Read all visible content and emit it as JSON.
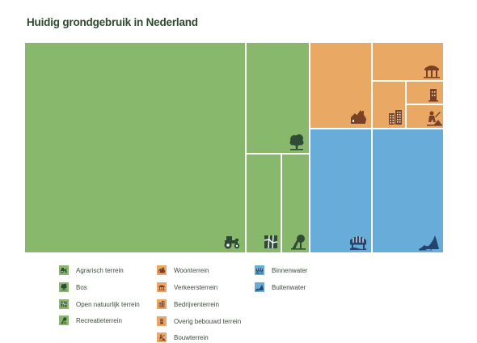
{
  "page": {
    "title": "Huidig grondgebruik in Nederland"
  },
  "colors": {
    "green": "#88b86b",
    "orange": "#eaa865",
    "blue": "#68add9",
    "icon_dark": "#2f4b35",
    "icon_orange": "#7a4127",
    "icon_blue": "#24446c"
  },
  "chart_data": {
    "type": "treemap",
    "title": "Huidig grondgebruik in Nederland",
    "categories": [
      {
        "id": "agrarisch",
        "label": "Agrarisch terrein",
        "group": "green",
        "icon": "tractor-icon"
      },
      {
        "id": "bos",
        "label": "Bos",
        "group": "green",
        "icon": "tree-icon"
      },
      {
        "id": "natuur",
        "label": "Open natuurlijk terrein",
        "group": "green",
        "icon": "map-icon"
      },
      {
        "id": "recreatie",
        "label": "Recreatieterrein",
        "group": "green",
        "icon": "playground-icon"
      },
      {
        "id": "woon",
        "label": "Woonterrein",
        "group": "orange",
        "icon": "houses-icon"
      },
      {
        "id": "verkeer",
        "label": "Verkeersterrein",
        "group": "orange",
        "icon": "road-icon"
      },
      {
        "id": "bedrijf",
        "label": "Bedrijventerrein",
        "group": "orange",
        "icon": "office-buildings-icon"
      },
      {
        "id": "overig",
        "label": "Overig bebouwd terrein",
        "group": "orange",
        "icon": "building-icon"
      },
      {
        "id": "bouw",
        "label": "Bouwterrein",
        "group": "orange",
        "icon": "construction-worker-icon"
      },
      {
        "id": "binnenwater",
        "label": "Binnenwater",
        "group": "blue",
        "icon": "bridge-icon"
      },
      {
        "id": "buitenwater",
        "label": "Buitenwater",
        "group": "blue",
        "icon": "wave-icon"
      }
    ]
  }
}
